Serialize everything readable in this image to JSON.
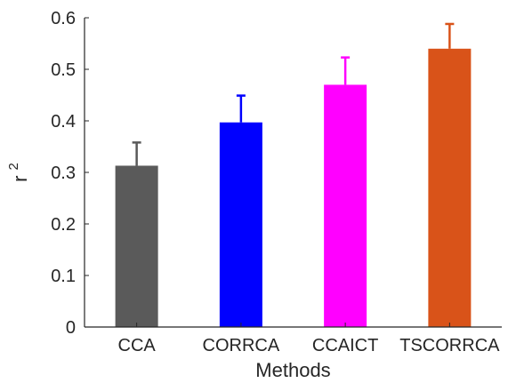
{
  "chart_data": {
    "type": "bar",
    "title": "",
    "xlabel": "Methods",
    "ylabel": "r",
    "ylabel_superscript": "2",
    "ylim": [
      0,
      0.6
    ],
    "yticks": [
      "0",
      "0.1",
      "0.2",
      "0.3",
      "0.4",
      "0.5",
      "0.6"
    ],
    "yticks_values": [
      0,
      0.1,
      0.2,
      0.3,
      0.4,
      0.5,
      0.6
    ],
    "grid": false,
    "categories": [
      "CCA",
      "CORRCA",
      "CCAICT",
      "TSCORRCA"
    ],
    "values": [
      0.313,
      0.397,
      0.47,
      0.54
    ],
    "error_upper": [
      0.045,
      0.052,
      0.053,
      0.048
    ],
    "colors": [
      "#5a5a5a",
      "#0000ff",
      "#ff00ff",
      "#d95319"
    ]
  }
}
